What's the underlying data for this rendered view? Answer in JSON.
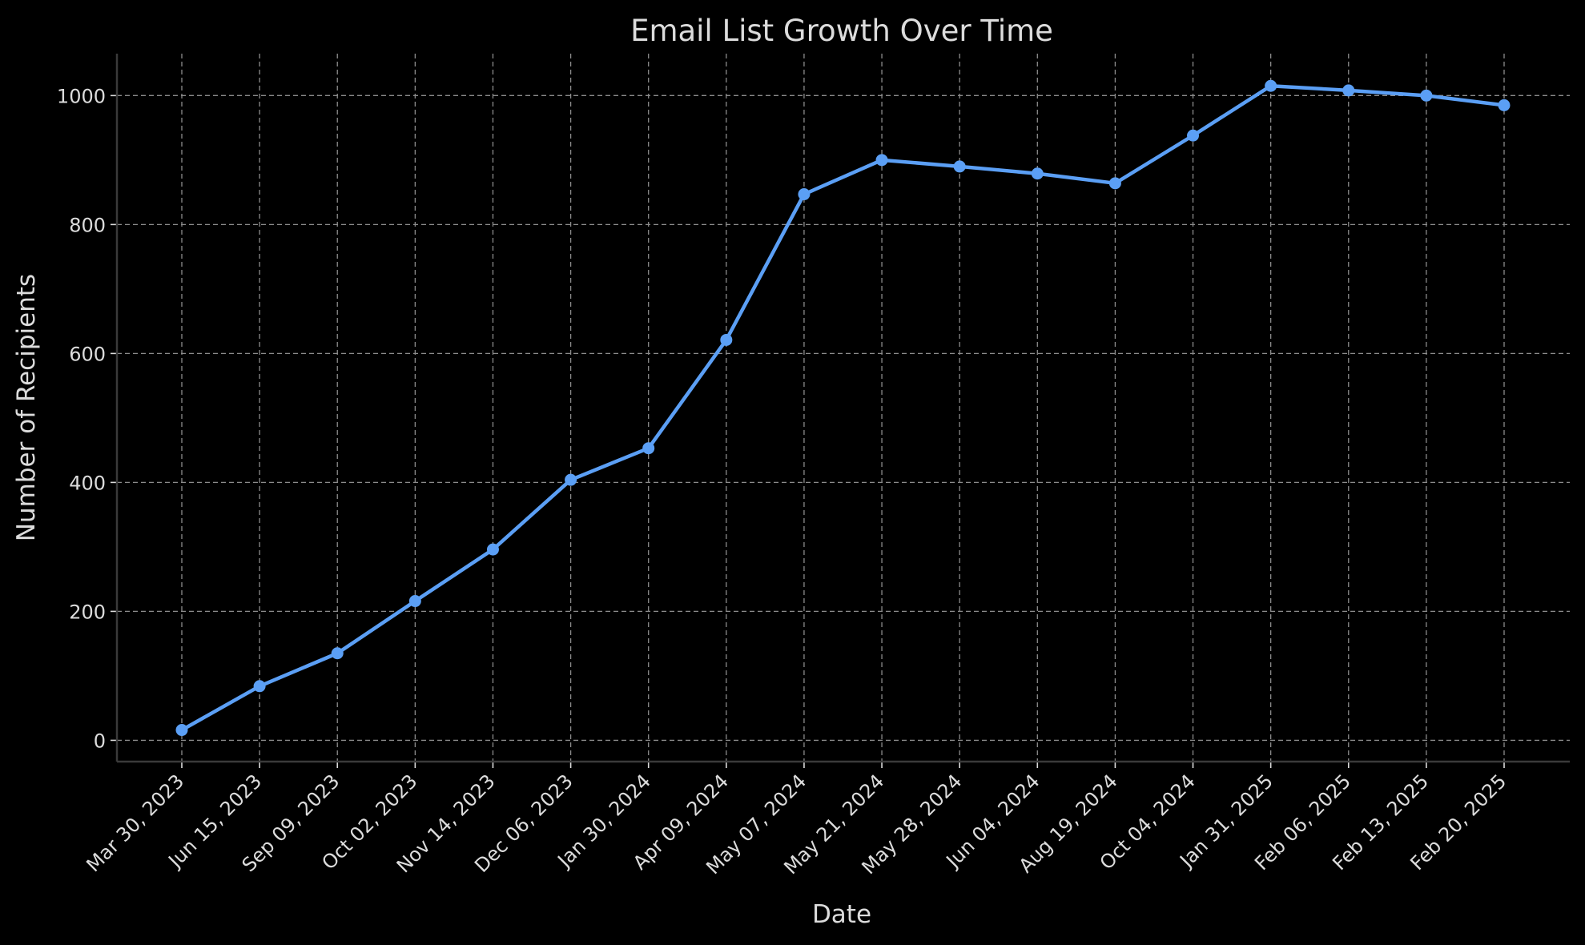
{
  "chart_data": {
    "type": "line",
    "title": "Email List Growth Over Time",
    "xlabel": "Date",
    "ylabel": "Number of Recipients",
    "categories": [
      "Mar 30, 2023",
      "Jun 15, 2023",
      "Sep 09, 2023",
      "Oct 02, 2023",
      "Nov 14, 2023",
      "Dec 06, 2023",
      "Jan 30, 2024",
      "Apr 09, 2024",
      "May 07, 2024",
      "May 21, 2024",
      "May 28, 2024",
      "Jun 04, 2024",
      "Aug 19, 2024",
      "Oct 04, 2024",
      "Jan 31, 2025",
      "Feb 06, 2025",
      "Feb 13, 2025",
      "Feb 20, 2025"
    ],
    "series": [
      {
        "values": [
          16,
          84,
          135,
          216,
          296,
          404,
          453,
          621,
          847,
          900,
          890,
          879,
          864,
          938,
          1015,
          1008,
          1000,
          985
        ],
        "color": "#5b9ff5"
      }
    ],
    "ylim": [
      -33,
      1065
    ],
    "yticks": [
      0,
      200,
      400,
      600,
      800,
      1000
    ],
    "grid": true,
    "legend": "none",
    "colors": {
      "background": "#000000",
      "text": "#dcdcdc",
      "grid": "#8c8c8c",
      "line": "#5b9ff5"
    }
  }
}
